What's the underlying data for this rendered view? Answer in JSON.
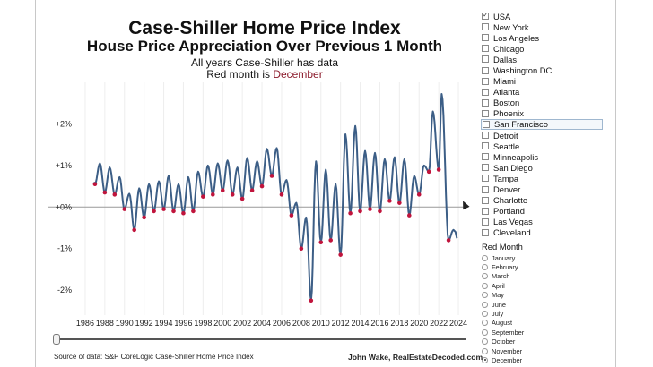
{
  "title": "Case-Shiller Home Price Index",
  "subtitle": "House Price Appreciation Over Previous 1 Month",
  "note_line1": "All years Case-Shiller has data",
  "note_line2_prefix": "Red month is ",
  "note_line2_month": "December",
  "legend": {
    "items": [
      {
        "label": "USA",
        "checked": true
      },
      {
        "label": "New York",
        "checked": false
      },
      {
        "label": "Los Angeles",
        "checked": false
      },
      {
        "label": "Chicago",
        "checked": false
      },
      {
        "label": "Dallas",
        "checked": false
      },
      {
        "label": "Washington DC",
        "checked": false
      },
      {
        "label": "Miami",
        "checked": false
      },
      {
        "label": "Atlanta",
        "checked": false
      },
      {
        "label": "Boston",
        "checked": false
      },
      {
        "label": "Phoenix",
        "checked": false
      },
      {
        "label": "San Francisco",
        "checked": false,
        "highlighted": true
      },
      {
        "label": "Detroit",
        "checked": false
      },
      {
        "label": "Seattle",
        "checked": false
      },
      {
        "label": "Minneapolis",
        "checked": false
      },
      {
        "label": "San Diego",
        "checked": false
      },
      {
        "label": "Tampa",
        "checked": false
      },
      {
        "label": "Denver",
        "checked": false
      },
      {
        "label": "Charlotte",
        "checked": false
      },
      {
        "label": "Portland",
        "checked": false
      },
      {
        "label": "Las Vegas",
        "checked": false
      },
      {
        "label": "Cleveland",
        "checked": false
      }
    ]
  },
  "red_month": {
    "title": "Red Month",
    "options": [
      "January",
      "February",
      "March",
      "April",
      "May",
      "June",
      "July",
      "August",
      "September",
      "October",
      "November",
      "December"
    ],
    "selected": "December"
  },
  "footer": {
    "source": "Source of data: S&P CoreLogic Case-Shiller Home Price Index",
    "credit": "John Wake, RealEstateDecoded.com"
  },
  "chart_data": {
    "type": "line",
    "xlim": [
      1985,
      2025
    ],
    "ylim": [
      -2.6,
      3.0
    ],
    "x_ticks": [
      "1986",
      "1988",
      "1990",
      "1992",
      "1994",
      "1996",
      "1998",
      "2000",
      "2002",
      "2004",
      "2006",
      "2008",
      "2010",
      "2012",
      "2014",
      "2016",
      "2018",
      "2020",
      "2022",
      "2024"
    ],
    "y_ticks": [
      {
        "value": 2,
        "label": "+2%"
      },
      {
        "value": 1,
        "label": "+1%"
      },
      {
        "value": 0,
        "label": "+0%"
      },
      {
        "value": -1,
        "label": "-1%"
      },
      {
        "value": -2,
        "label": "-2%"
      }
    ],
    "line_color": "#3c5e86",
    "marker_color": "#c0143c",
    "series": [
      {
        "name": "USA",
        "peaks": [
          {
            "x": 1987.5,
            "y": 1.05
          },
          {
            "x": 1988.5,
            "y": 0.95
          },
          {
            "x": 1989.5,
            "y": 0.72
          },
          {
            "x": 1990.5,
            "y": 0.32
          },
          {
            "x": 1991.5,
            "y": 0.45
          },
          {
            "x": 1992.5,
            "y": 0.55
          },
          {
            "x": 1993.5,
            "y": 0.62
          },
          {
            "x": 1994.5,
            "y": 0.75
          },
          {
            "x": 1995.5,
            "y": 0.55
          },
          {
            "x": 1996.5,
            "y": 0.72
          },
          {
            "x": 1997.5,
            "y": 0.85
          },
          {
            "x": 1998.5,
            "y": 1.0
          },
          {
            "x": 1999.5,
            "y": 1.05
          },
          {
            "x": 2000.5,
            "y": 1.12
          },
          {
            "x": 2001.5,
            "y": 0.95
          },
          {
            "x": 2002.5,
            "y": 1.18
          },
          {
            "x": 2003.5,
            "y": 1.1
          },
          {
            "x": 2004.5,
            "y": 1.4
          },
          {
            "x": 2005.5,
            "y": 1.42
          },
          {
            "x": 2006.5,
            "y": 0.65
          },
          {
            "x": 2007.5,
            "y": 0.1
          },
          {
            "x": 2008.5,
            "y": -0.25
          },
          {
            "x": 2009.5,
            "y": 1.1
          },
          {
            "x": 2010.5,
            "y": 0.9
          },
          {
            "x": 2011.5,
            "y": 0.55
          },
          {
            "x": 2012.5,
            "y": 1.75
          },
          {
            "x": 2013.5,
            "y": 1.95
          },
          {
            "x": 2014.5,
            "y": 1.35
          },
          {
            "x": 2015.5,
            "y": 1.3
          },
          {
            "x": 2016.5,
            "y": 1.15
          },
          {
            "x": 2017.5,
            "y": 1.2
          },
          {
            "x": 2018.5,
            "y": 1.15
          },
          {
            "x": 2019.5,
            "y": 0.75
          },
          {
            "x": 2020.5,
            "y": 1.0
          },
          {
            "x": 2021.4,
            "y": 2.3
          },
          {
            "x": 2022.3,
            "y": 2.72
          },
          {
            "x": 2023.5,
            "y": -0.55
          }
        ],
        "december_values": [
          {
            "x": 1987.0,
            "y": 0.55
          },
          {
            "x": 1988.0,
            "y": 0.35
          },
          {
            "x": 1989.0,
            "y": 0.3
          },
          {
            "x": 1990.0,
            "y": -0.05
          },
          {
            "x": 1991.0,
            "y": -0.55
          },
          {
            "x": 1992.0,
            "y": -0.25
          },
          {
            "x": 1993.0,
            "y": -0.1
          },
          {
            "x": 1994.0,
            "y": -0.05
          },
          {
            "x": 1995.0,
            "y": -0.1
          },
          {
            "x": 1996.0,
            "y": -0.15
          },
          {
            "x": 1997.0,
            "y": -0.1
          },
          {
            "x": 1998.0,
            "y": 0.25
          },
          {
            "x": 1999.0,
            "y": 0.3
          },
          {
            "x": 2000.0,
            "y": 0.4
          },
          {
            "x": 2001.0,
            "y": 0.3
          },
          {
            "x": 2002.0,
            "y": 0.2
          },
          {
            "x": 2003.0,
            "y": 0.4
          },
          {
            "x": 2004.0,
            "y": 0.5
          },
          {
            "x": 2005.0,
            "y": 0.75
          },
          {
            "x": 2006.0,
            "y": 0.3
          },
          {
            "x": 2007.0,
            "y": -0.2
          },
          {
            "x": 2008.0,
            "y": -1.0
          },
          {
            "x": 2009.0,
            "y": -2.25
          },
          {
            "x": 2010.0,
            "y": -0.85
          },
          {
            "x": 2011.0,
            "y": -0.8
          },
          {
            "x": 2012.0,
            "y": -1.15
          },
          {
            "x": 2013.0,
            "y": -0.15
          },
          {
            "x": 2014.0,
            "y": -0.1
          },
          {
            "x": 2015.0,
            "y": -0.05
          },
          {
            "x": 2016.0,
            "y": -0.1
          },
          {
            "x": 2017.0,
            "y": 0.15
          },
          {
            "x": 2018.0,
            "y": 0.1
          },
          {
            "x": 2019.0,
            "y": -0.2
          },
          {
            "x": 2020.0,
            "y": 0.3
          },
          {
            "x": 2021.0,
            "y": 0.85
          },
          {
            "x": 2022.0,
            "y": 0.9
          },
          {
            "x": 2023.0,
            "y": -0.8
          }
        ]
      }
    ],
    "grid": "vertical",
    "zero_line": true
  }
}
